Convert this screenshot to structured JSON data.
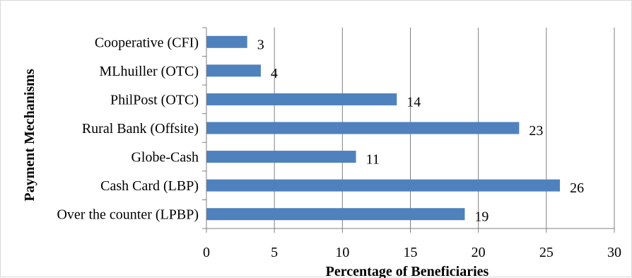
{
  "chart_data": {
    "type": "bar",
    "orientation": "horizontal",
    "categories": [
      "Cooperative (CFI)",
      "MLhuiller (OTC)",
      "PhilPost (OTC)",
      "Rural Bank (Offsite)",
      "Globe-Cash",
      "Cash Card (LBP)",
      "Over the counter (LPBP)"
    ],
    "values": [
      3,
      4,
      14,
      23,
      11,
      26,
      19
    ],
    "data_labels": [
      "3",
      "4",
      "14",
      "23",
      "11",
      "26",
      "19"
    ],
    "xlabel": "Percentage of Beneficiaries",
    "ylabel": "Payment Mechanisms",
    "xlim": [
      0,
      30
    ],
    "xticks": [
      0,
      5,
      10,
      15,
      20,
      25,
      30
    ],
    "xtick_labels": [
      "0",
      "5",
      "10",
      "15",
      "20",
      "25",
      "30"
    ],
    "grid": "vertical",
    "legend": "none",
    "colors": {
      "bar": "#4f81bd",
      "grid": "#7f7f7f",
      "axis": "#7f7f7f",
      "text": "#000000",
      "border": "#d9d9d9"
    }
  }
}
